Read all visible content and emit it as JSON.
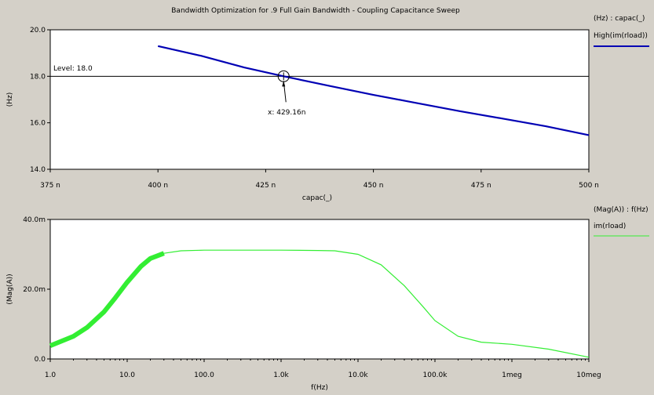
{
  "window": {
    "title": "Bandwidth Optimization for .9 Full Gain Bandwidth - Coupling Capacitance Sweep"
  },
  "colors": {
    "background": "#d4d0c8",
    "plot_background": "#ffffff",
    "top_series": "#0000b4",
    "bottom_series": "#33ee33"
  },
  "chart_data": [
    {
      "type": "line",
      "title": "Bandwidth Optimization for .9 Full Gain Bandwidth - Coupling Capacitance Sweep",
      "xlabel": "capac(_)",
      "ylabel": "(Hz)",
      "xlim": [
        375,
        500
      ],
      "ylim": [
        14.0,
        20.0
      ],
      "x_ticks": [
        "375 n",
        "400 n",
        "425 n",
        "450 n",
        "475 n",
        "500 n"
      ],
      "y_ticks": [
        "14.0",
        "16.0",
        "18.0",
        "20.0"
      ],
      "grid": false,
      "legend": {
        "position": "right",
        "header": "(Hz) : capac(_)",
        "entries": [
          "High(im(rload))"
        ]
      },
      "series": [
        {
          "name": "High(im(rload))",
          "x": [
            400,
            410,
            420,
            429.16,
            440,
            450,
            460,
            470,
            480,
            490,
            500
          ],
          "y": [
            19.3,
            18.88,
            18.38,
            18.0,
            17.58,
            17.2,
            16.85,
            16.5,
            16.18,
            15.85,
            15.47
          ]
        }
      ],
      "annotations": {
        "level_label": "Level: 18.0",
        "level": 18.0,
        "marker_x": 429.16,
        "marker_label": "x: 429.16n"
      }
    },
    {
      "type": "line",
      "xscale": "log",
      "xlabel": "f(Hz)",
      "ylabel": "(Mag(A))",
      "xlim": [
        1.0,
        10000000
      ],
      "ylim": [
        0.0,
        40.0
      ],
      "x_ticks": [
        "1.0",
        "10.0",
        "100.0",
        "1.0k",
        "10.0k",
        "100.0k",
        "1meg",
        "10meg"
      ],
      "y_ticks": [
        "0.0",
        "20.0m",
        "40.0m"
      ],
      "y_unit": "m",
      "grid": false,
      "legend": {
        "position": "right",
        "header": "(Mag(A)) : f(Hz)",
        "entries": [
          "im(rload)"
        ]
      },
      "series": [
        {
          "name": "im(rload)",
          "x": [
            1,
            2,
            3,
            5,
            7,
            10,
            15,
            20,
            30,
            50,
            100,
            300,
            1000,
            3000,
            5000,
            10000,
            20000,
            40000,
            70000,
            100000,
            200000,
            400000,
            1000000,
            3000000,
            10000000
          ],
          "y": [
            3.8,
            6.5,
            9.0,
            13.5,
            17.5,
            22.0,
            26.5,
            28.8,
            30.3,
            31.0,
            31.2,
            31.2,
            31.2,
            31.1,
            31.0,
            30.0,
            27.0,
            21.0,
            15.0,
            11.0,
            6.5,
            4.8,
            4.2,
            2.8,
            0.5
          ]
        }
      ]
    }
  ]
}
